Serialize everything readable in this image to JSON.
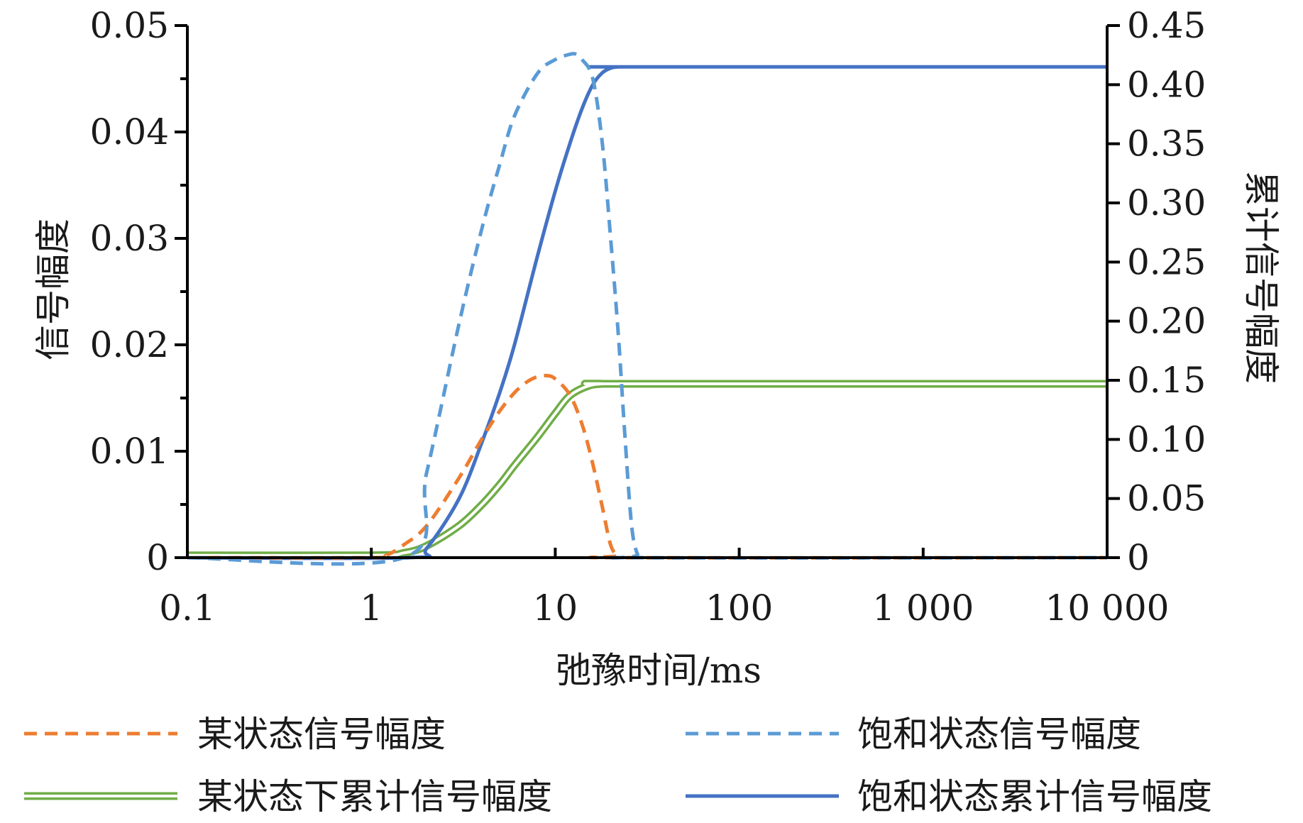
{
  "chart_data": {
    "type": "line",
    "xlabel": "弛豫时间/ms",
    "ylabel_left": "信号幅度",
    "ylabel_right": "累计信号幅度",
    "x_scale": "log",
    "xlim": [
      0.1,
      10000
    ],
    "ylim_left": [
      0,
      0.05
    ],
    "ylim_right": [
      0,
      0.45
    ],
    "x_ticks": [
      {
        "value": 0.1,
        "label": "0.1"
      },
      {
        "value": 1,
        "label": "1"
      },
      {
        "value": 10,
        "label": "10"
      },
      {
        "value": 100,
        "label": "100"
      },
      {
        "value": 1000,
        "label": "1 000"
      },
      {
        "value": 10000,
        "label": "10 000"
      }
    ],
    "y_left_ticks": [
      {
        "value": 0,
        "label": "0"
      },
      {
        "value": 0.01,
        "label": "0.01"
      },
      {
        "value": 0.02,
        "label": "0.02"
      },
      {
        "value": 0.03,
        "label": "0.03"
      },
      {
        "value": 0.04,
        "label": "0.04"
      },
      {
        "value": 0.05,
        "label": "0.05"
      }
    ],
    "y_right_ticks": [
      {
        "value": 0,
        "label": "0"
      },
      {
        "value": 0.05,
        "label": "0.05"
      },
      {
        "value": 0.1,
        "label": "0.10"
      },
      {
        "value": 0.15,
        "label": "0.15"
      },
      {
        "value": 0.2,
        "label": "0.20"
      },
      {
        "value": 0.25,
        "label": "0.25"
      },
      {
        "value": 0.3,
        "label": "0.30"
      },
      {
        "value": 0.35,
        "label": "0.35"
      },
      {
        "value": 0.4,
        "label": "0.40"
      },
      {
        "value": 0.45,
        "label": "0.45"
      }
    ],
    "grid": false,
    "legend_position": "bottom",
    "series": [
      {
        "name": "某状态信号幅度",
        "axis": "left",
        "style": "dashed",
        "color": "#ED7D31",
        "points": [
          [
            0.1,
            0
          ],
          [
            1,
            0
          ],
          [
            1.2,
            0.0002
          ],
          [
            1.5,
            0.0012
          ],
          [
            2,
            0.003
          ],
          [
            3,
            0.0075
          ],
          [
            4,
            0.0112
          ],
          [
            5,
            0.0138
          ],
          [
            6,
            0.0155
          ],
          [
            7,
            0.0165
          ],
          [
            8,
            0.017
          ],
          [
            9,
            0.0171
          ],
          [
            10,
            0.0168
          ],
          [
            12,
            0.0153
          ],
          [
            14,
            0.0125
          ],
          [
            16,
            0.0088
          ],
          [
            18,
            0.0048
          ],
          [
            20,
            0.0012
          ],
          [
            22,
            0.0002
          ],
          [
            25,
            0
          ],
          [
            10000,
            0
          ]
        ]
      },
      {
        "name": "饱和状态信号幅度",
        "axis": "left",
        "style": "dashed",
        "color": "#5B9BD5",
        "points": [
          [
            0.1,
            0
          ],
          [
            1.5,
            0
          ],
          [
            2,
            0.008
          ],
          [
            3,
            0.022
          ],
          [
            4,
            0.031
          ],
          [
            5,
            0.037
          ],
          [
            6,
            0.0415
          ],
          [
            8,
            0.0455
          ],
          [
            10,
            0.0468
          ],
          [
            12,
            0.0473
          ],
          [
            13,
            0.0473
          ],
          [
            14,
            0.0468
          ],
          [
            16,
            0.045
          ],
          [
            18,
            0.039
          ],
          [
            20,
            0.03
          ],
          [
            22,
            0.021
          ],
          [
            24,
            0.011
          ],
          [
            26,
            0.003
          ],
          [
            28,
            0.0003
          ],
          [
            30,
            0
          ],
          [
            10000,
            0
          ]
        ]
      },
      {
        "name": "某状态下累计信号幅度",
        "axis": "right",
        "style": "double",
        "color": "#70AD47",
        "points": [
          [
            0.1,
            0.002
          ],
          [
            1,
            0.002
          ],
          [
            1.5,
            0.004
          ],
          [
            2,
            0.01
          ],
          [
            3,
            0.027
          ],
          [
            4,
            0.045
          ],
          [
            5,
            0.062
          ],
          [
            6,
            0.078
          ],
          [
            8,
            0.102
          ],
          [
            10,
            0.122
          ],
          [
            12,
            0.137
          ],
          [
            15,
            0.145
          ],
          [
            18,
            0.147
          ],
          [
            25,
            0.147
          ],
          [
            10000,
            0.147
          ]
        ]
      },
      {
        "name": "饱和状态累计信号幅度",
        "axis": "right",
        "style": "solid",
        "color": "#4472C4",
        "points": [
          [
            0.1,
            0
          ],
          [
            1.6,
            0
          ],
          [
            2,
            0.008
          ],
          [
            3,
            0.05
          ],
          [
            4,
            0.098
          ],
          [
            5,
            0.14
          ],
          [
            6,
            0.18
          ],
          [
            8,
            0.255
          ],
          [
            10,
            0.31
          ],
          [
            12,
            0.35
          ],
          [
            14,
            0.38
          ],
          [
            16,
            0.4
          ],
          [
            18,
            0.41
          ],
          [
            20,
            0.414
          ],
          [
            22,
            0.415
          ],
          [
            25,
            0.415
          ],
          [
            10000,
            0.415
          ]
        ]
      }
    ]
  }
}
